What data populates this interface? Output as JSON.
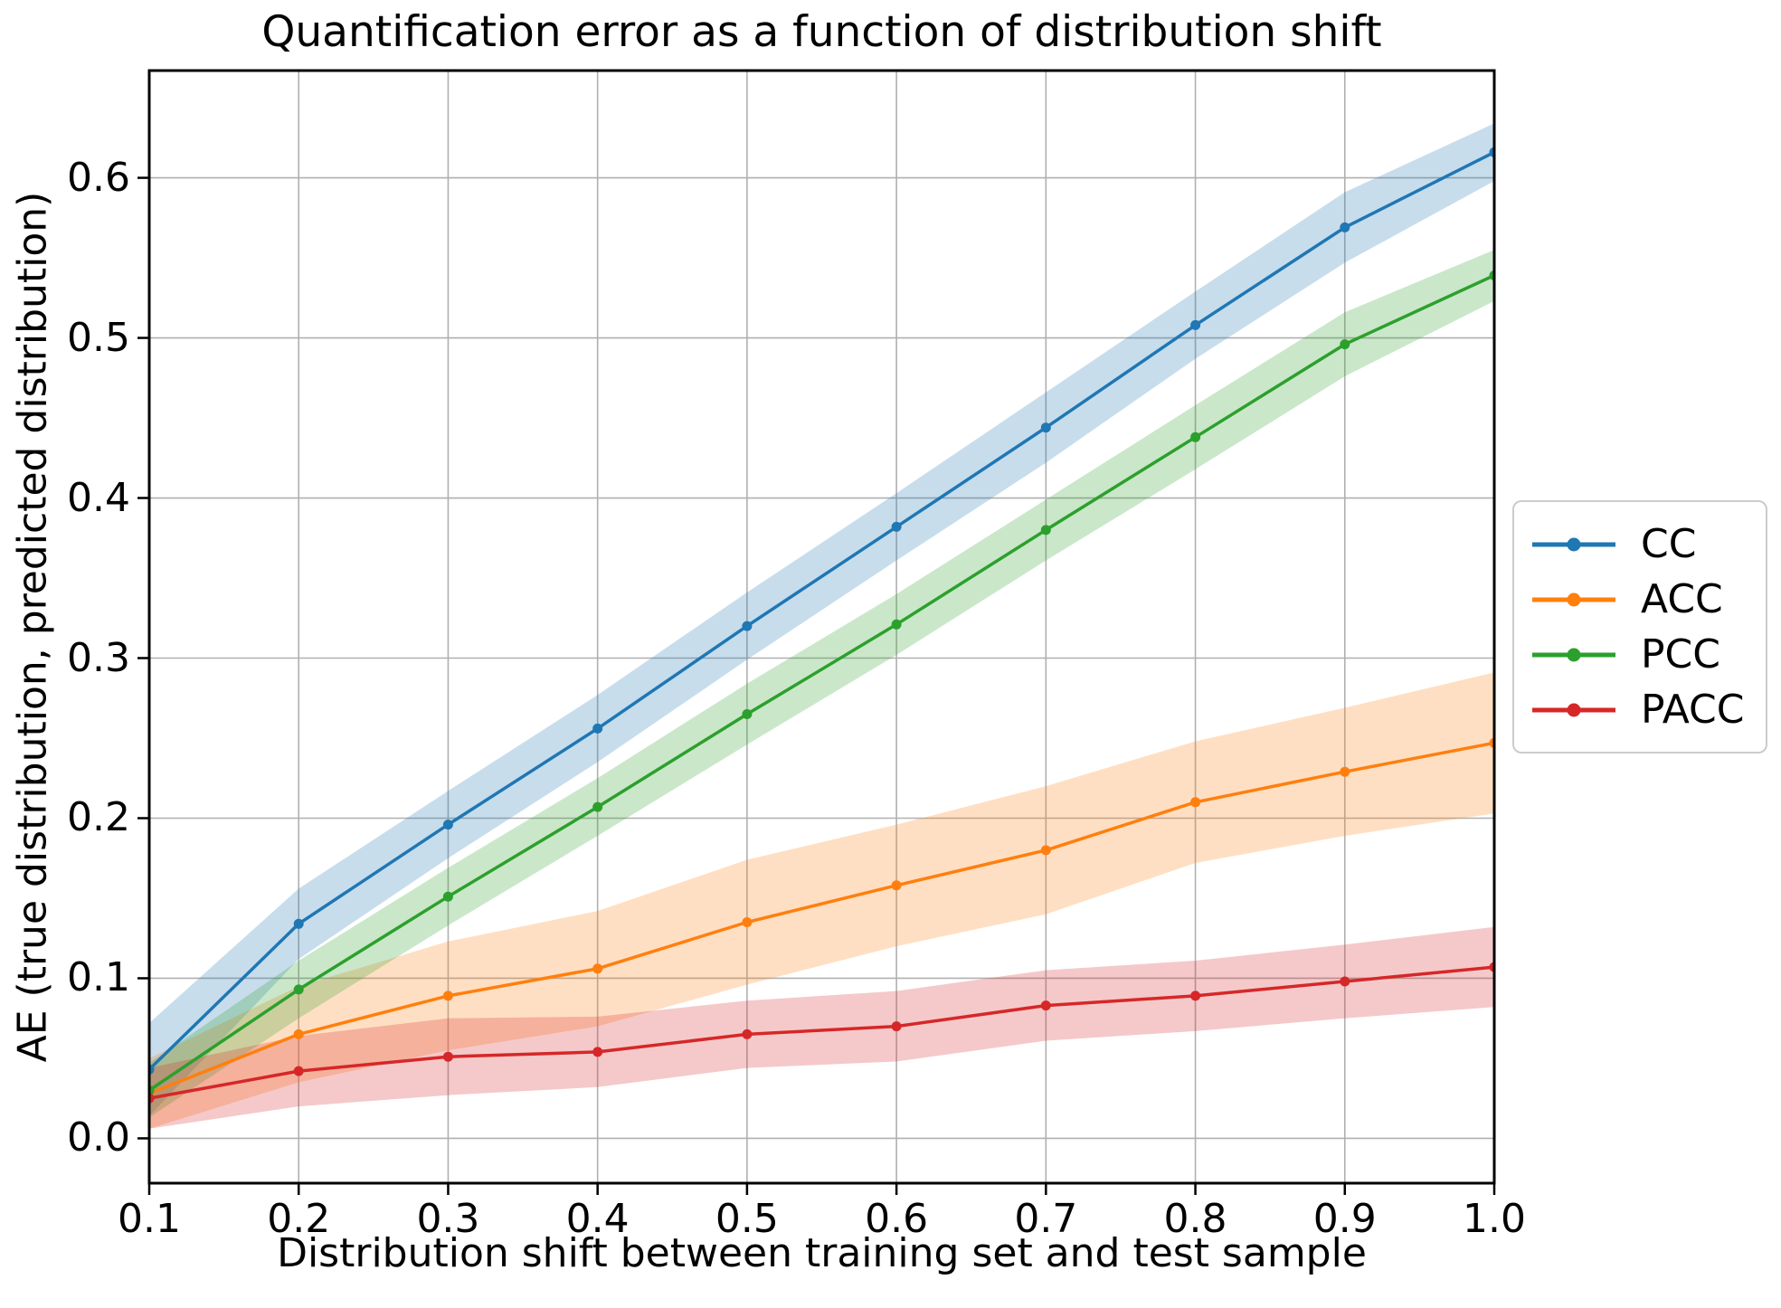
{
  "chart_data": {
    "type": "line",
    "title": "Quantification error as a function of distribution shift",
    "xlabel": "Distribution shift between training set and test sample",
    "ylabel": "AE (true distribution, predicted distribution)",
    "x": [
      0.1,
      0.2,
      0.3,
      0.4,
      0.5,
      0.6,
      0.7,
      0.8,
      0.9,
      1.0
    ],
    "x_tick_labels": [
      "0.1",
      "0.2",
      "0.3",
      "0.4",
      "0.5",
      "0.6",
      "0.7",
      "0.8",
      "0.9",
      "1.0"
    ],
    "y_ticks": [
      0.0,
      0.1,
      0.2,
      0.3,
      0.4,
      0.5,
      0.6
    ],
    "y_tick_labels": [
      "0.0",
      "0.1",
      "0.2",
      "0.3",
      "0.4",
      "0.5",
      "0.6"
    ],
    "xlim": [
      0.1,
      1.0
    ],
    "ylim": [
      -0.028,
      0.667
    ],
    "grid": true,
    "grid_color": "#b0b0b0",
    "axis_color": "#000000",
    "band_alpha": 0.25,
    "legend_position": "outside-center-right",
    "series": [
      {
        "name": "CC",
        "color": "#1f77b4",
        "values": [
          0.043,
          0.134,
          0.196,
          0.256,
          0.32,
          0.382,
          0.444,
          0.508,
          0.569,
          0.616
        ],
        "band_half_width": [
          0.029,
          0.022,
          0.021,
          0.021,
          0.021,
          0.021,
          0.022,
          0.021,
          0.022,
          0.018
        ]
      },
      {
        "name": "ACC",
        "color": "#ff7f0e",
        "values": [
          0.028,
          0.065,
          0.089,
          0.106,
          0.135,
          0.158,
          0.18,
          0.21,
          0.229,
          0.247
        ],
        "band_half_width": [
          0.022,
          0.03,
          0.034,
          0.036,
          0.039,
          0.038,
          0.04,
          0.038,
          0.04,
          0.044
        ]
      },
      {
        "name": "PCC",
        "color": "#2ca02c",
        "values": [
          0.03,
          0.093,
          0.151,
          0.207,
          0.265,
          0.321,
          0.38,
          0.438,
          0.496,
          0.539
        ],
        "band_half_width": [
          0.017,
          0.018,
          0.018,
          0.018,
          0.019,
          0.019,
          0.019,
          0.02,
          0.02,
          0.016
        ]
      },
      {
        "name": "PACC",
        "color": "#d62728",
        "values": [
          0.025,
          0.042,
          0.051,
          0.054,
          0.065,
          0.07,
          0.083,
          0.089,
          0.098,
          0.107
        ],
        "band_half_width": [
          0.019,
          0.022,
          0.024,
          0.022,
          0.021,
          0.022,
          0.022,
          0.022,
          0.023,
          0.025
        ]
      }
    ]
  }
}
